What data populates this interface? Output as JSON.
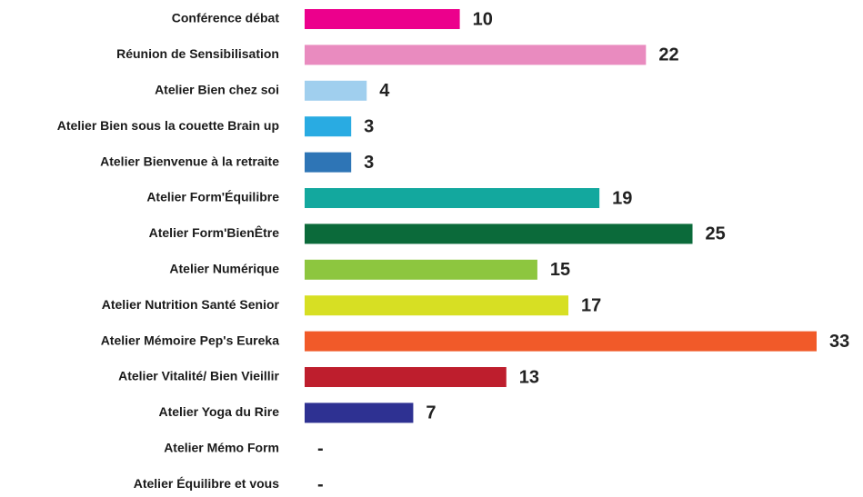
{
  "chart_data": {
    "type": "bar",
    "orientation": "horizontal",
    "categories": [
      "Conférence débat",
      "Réunion de Sensibilisation",
      "Atelier Bien chez soi",
      "Atelier Bien sous la couette Brain up",
      "Atelier Bienvenue à la retraite",
      "Atelier Form'Équilibre",
      "Atelier Form'BienÊtre",
      "Atelier Numérique",
      "Atelier Nutrition Santé Senior",
      "Atelier Mémoire Pep's Eureka",
      "Atelier Vitalité/ Bien Vieillir",
      "Atelier Yoga du Rire",
      "Atelier Mémo Form",
      "Atelier Équilibre et vous"
    ],
    "values": [
      10,
      22,
      4,
      3,
      3,
      19,
      25,
      15,
      17,
      33,
      13,
      7,
      null,
      null
    ],
    "value_labels": [
      "10",
      "22",
      "4",
      "3",
      "3",
      "19",
      "25",
      "15",
      "17",
      "33",
      "13",
      "7",
      "-",
      "-"
    ],
    "colors": [
      "#ec008c",
      "#e98bbf",
      "#a0cfee",
      "#29abe2",
      "#2e75b6",
      "#13a89e",
      "#0b6a3a",
      "#8dc63f",
      "#d7df23",
      "#f15a29",
      "#be1e2d",
      "#2e3192",
      "#000000",
      "#000000"
    ]
  }
}
